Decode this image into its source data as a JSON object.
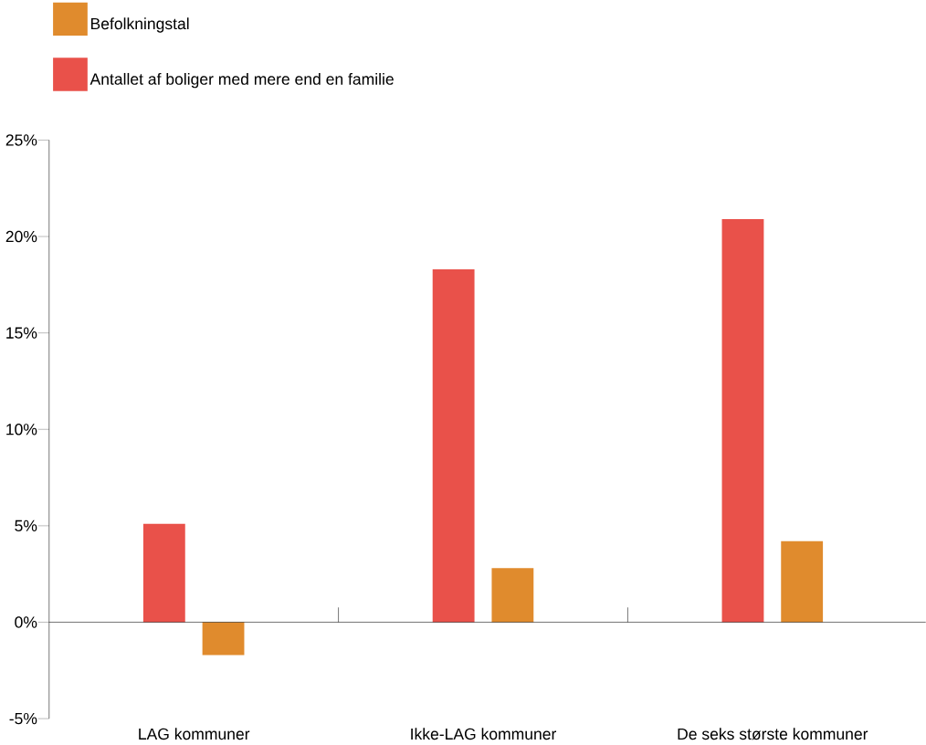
{
  "chart_data": {
    "type": "bar",
    "categories": [
      "LAG kommuner",
      "Ikke-LAG kommuner",
      "De seks største kommuner"
    ],
    "series": [
      {
        "name": "Antallet af boliger med mere end en familie",
        "color": "#e9514a",
        "values": [
          5.1,
          18.3,
          20.9
        ]
      },
      {
        "name": "Befolkningstal",
        "color": "#e08b2d",
        "values": [
          -1.7,
          2.8,
          4.2
        ]
      }
    ],
    "ylim": [
      -5,
      25
    ],
    "yticks": [
      {
        "value": -5,
        "label": "-5%"
      },
      {
        "value": 0,
        "label": "0%"
      },
      {
        "value": 5,
        "label": "5%"
      },
      {
        "value": 10,
        "label": "10%"
      },
      {
        "value": 15,
        "label": "15%"
      },
      {
        "value": 20,
        "label": "20%"
      },
      {
        "value": 25,
        "label": "25%"
      }
    ],
    "legend": "top left"
  }
}
